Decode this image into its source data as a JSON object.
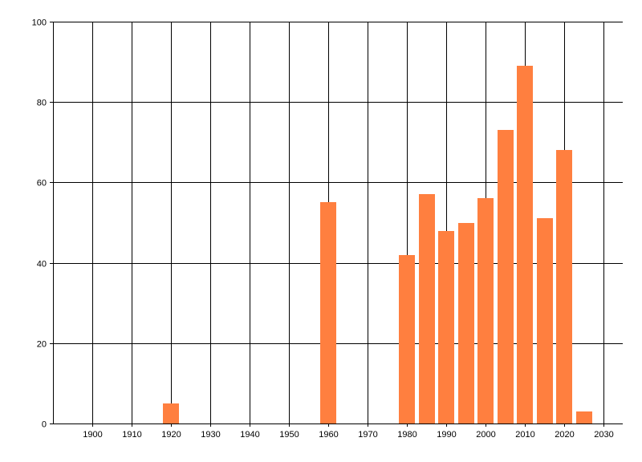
{
  "chart_data": {
    "type": "bar",
    "title": "",
    "xlabel": "",
    "ylabel": "",
    "x": [
      1920,
      1960,
      1980,
      1985,
      1990,
      1995,
      2000,
      2005,
      2010,
      2015,
      2020,
      2025
    ],
    "values": [
      5,
      55,
      42,
      57,
      48,
      50,
      56,
      73,
      89,
      51,
      68,
      3
    ],
    "xlim": [
      1890,
      2035
    ],
    "ylim": [
      0,
      100
    ],
    "x_ticks": [
      1900,
      1910,
      1920,
      1930,
      1940,
      1950,
      1960,
      1970,
      1980,
      1990,
      2000,
      2010,
      2020,
      2030
    ],
    "y_ticks": [
      0,
      20,
      40,
      60,
      80,
      100
    ],
    "x_tick_labels": [
      "1900",
      "1910",
      "1920",
      "1930",
      "1940",
      "1950",
      "1960",
      "1970",
      "1980",
      "1990",
      "2000",
      "2010",
      "2020",
      "2030"
    ],
    "y_tick_labels": [
      "0",
      "20",
      "40",
      "60",
      "80",
      "100"
    ],
    "bar_color": "#ff7f3f",
    "grid": true,
    "legend": "none"
  }
}
